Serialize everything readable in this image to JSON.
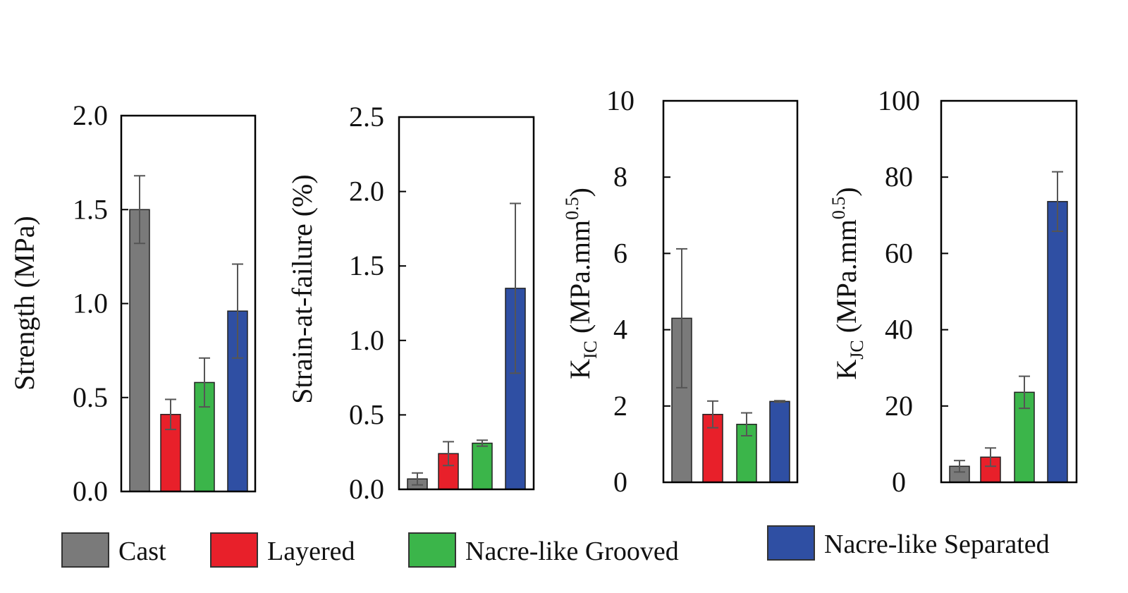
{
  "colors": {
    "Cast": "#7a7a7a",
    "Layered": "#e8202a",
    "Nacre-like Grooved": "#3bb54a",
    "Nacre-like Separated": "#2f4fa3",
    "errorbar": "#555555",
    "frame": "#000000"
  },
  "legend": {
    "items": [
      {
        "label": "Cast",
        "color_key": "Cast"
      },
      {
        "label": "Layered",
        "color_key": "Layered"
      },
      {
        "label": "Nacre-like  Grooved",
        "color_key": "Nacre-like Grooved"
      },
      {
        "label": "Nacre-like  Separated",
        "color_key": "Nacre-like Separated"
      }
    ]
  },
  "chart_data": [
    {
      "type": "bar",
      "ylabel": "Strength (MPa)",
      "ylim": [
        0,
        2.0
      ],
      "yticks": [
        "0.0",
        "0.5",
        "1.0",
        "1.5",
        "2.0"
      ],
      "ytick_values": [
        0,
        0.5,
        1.0,
        1.5,
        2.0
      ],
      "categories": [
        "Cast",
        "Layered",
        "Nacre-like Grooved",
        "Nacre-like Separated"
      ],
      "values": [
        1.5,
        0.41,
        0.58,
        0.96
      ],
      "errors": [
        0.18,
        0.08,
        0.13,
        0.25
      ],
      "grid": false
    },
    {
      "type": "bar",
      "ylabel": "Strain-at-failure (%)",
      "ylim": [
        0,
        2.5
      ],
      "yticks": [
        "0.0",
        "0.5",
        "1.0",
        "1.5",
        "2.0",
        "2.5"
      ],
      "ytick_values": [
        0,
        0.5,
        1.0,
        1.5,
        2.0,
        2.5
      ],
      "categories": [
        "Cast",
        "Layered",
        "Nacre-like Grooved",
        "Nacre-like Separated"
      ],
      "values": [
        0.07,
        0.24,
        0.31,
        1.35
      ],
      "errors": [
        0.04,
        0.08,
        0.02,
        0.57
      ],
      "grid": false
    },
    {
      "type": "bar",
      "ylabel": "K",
      "ylabel_sub": "IC",
      "ylabel_rest": " (MPa.mm",
      "ylabel_sup": "0.5",
      "ylabel_end": ")",
      "ylim": [
        0,
        10
      ],
      "yticks": [
        "0",
        "2",
        "4",
        "6",
        "8",
        "10"
      ],
      "ytick_values": [
        0,
        2,
        4,
        6,
        8,
        10
      ],
      "categories": [
        "Cast",
        "Layered",
        "Nacre-like Grooved",
        "Nacre-like Separated"
      ],
      "values": [
        4.3,
        1.78,
        1.52,
        2.12
      ],
      "errors": [
        1.82,
        0.35,
        0.3,
        0.02
      ],
      "grid": false
    },
    {
      "type": "bar",
      "ylabel": "K",
      "ylabel_sub": "JC",
      "ylabel_rest": " (MPa.mm",
      "ylabel_sup": "0.5",
      "ylabel_end": ")",
      "ylim": [
        0,
        100
      ],
      "yticks": [
        "0",
        "20",
        "40",
        "60",
        "80",
        "100"
      ],
      "ytick_values": [
        0,
        20,
        40,
        60,
        80,
        100
      ],
      "categories": [
        "Cast",
        "Layered",
        "Nacre-like Grooved",
        "Nacre-like Separated"
      ],
      "values": [
        4.2,
        6.6,
        23.6,
        73.6
      ],
      "errors": [
        1.5,
        2.4,
        4.2,
        7.8
      ],
      "grid": false
    }
  ]
}
